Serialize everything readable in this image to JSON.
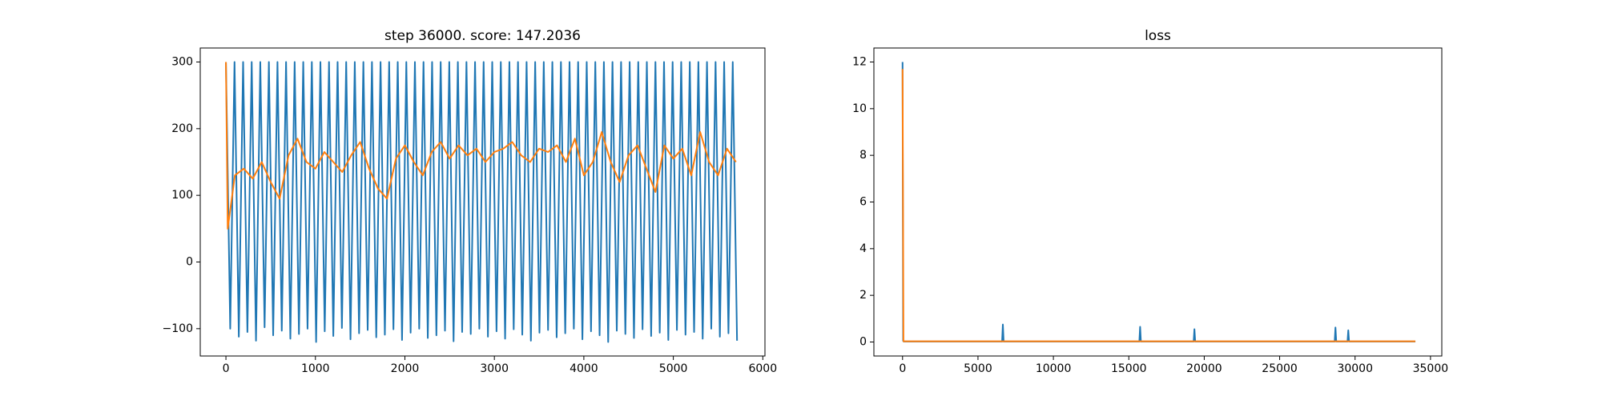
{
  "chart_data": [
    {
      "type": "line",
      "title": "step 36000. score: 147.2036",
      "xlim": [
        -287,
        6024
      ],
      "ylim": [
        -141,
        321
      ],
      "xticks": [
        0,
        1000,
        2000,
        3000,
        4000,
        5000,
        6000
      ],
      "yticks": [
        {
          "value": -100,
          "label": "−100"
        },
        0,
        100,
        200,
        300
      ],
      "series": [
        {
          "color": "#1f77b4",
          "x": [
            0,
            48,
            96,
            144,
            192,
            240,
            288,
            336,
            384,
            432,
            480,
            528,
            576,
            624,
            672,
            720,
            768,
            816,
            864,
            912,
            960,
            1008,
            1056,
            1104,
            1152,
            1200,
            1248,
            1296,
            1344,
            1392,
            1440,
            1488,
            1536,
            1584,
            1632,
            1680,
            1728,
            1776,
            1824,
            1872,
            1920,
            1968,
            2016,
            2064,
            2112,
            2160,
            2208,
            2256,
            2304,
            2352,
            2400,
            2448,
            2496,
            2544,
            2592,
            2640,
            2688,
            2736,
            2784,
            2832,
            2880,
            2928,
            2976,
            3024,
            3072,
            3120,
            3168,
            3216,
            3264,
            3312,
            3360,
            3408,
            3456,
            3504,
            3552,
            3600,
            3648,
            3696,
            3744,
            3792,
            3840,
            3888,
            3936,
            3984,
            4032,
            4080,
            4128,
            4176,
            4224,
            4272,
            4320,
            4368,
            4416,
            4464,
            4512,
            4560,
            4608,
            4656,
            4704,
            4752,
            4800,
            4848,
            4896,
            4944,
            4992,
            5040,
            5088,
            5136,
            5184,
            5232,
            5280,
            5328,
            5376,
            5424,
            5472,
            5520,
            5568,
            5616,
            5664,
            5712
          ],
          "values": [
            300,
            -100,
            300,
            -112,
            300,
            -105,
            300,
            -118,
            300,
            -98,
            300,
            -110,
            300,
            -103,
            300,
            -115,
            300,
            -108,
            300,
            -100,
            300,
            -120,
            300,
            -104,
            300,
            -111,
            300,
            -99,
            300,
            -116,
            300,
            -107,
            300,
            -102,
            300,
            -113,
            300,
            -109,
            300,
            -101,
            300,
            -117,
            300,
            -106,
            300,
            -100,
            300,
            -114,
            300,
            -110,
            300,
            -103,
            300,
            -119,
            300,
            -105,
            300,
            -108,
            300,
            -100,
            300,
            -112,
            300,
            -104,
            300,
            -115,
            300,
            -101,
            300,
            -109,
            300,
            -118,
            300,
            -106,
            300,
            -102,
            300,
            -113,
            300,
            -107,
            300,
            -100,
            300,
            -116,
            300,
            -104,
            300,
            -110,
            300,
            -120,
            300,
            -103,
            300,
            -108,
            300,
            -114,
            300,
            -101,
            300,
            -111,
            300,
            -106,
            300,
            -117,
            300,
            -102,
            300,
            -109,
            300,
            -105,
            300,
            -115,
            300,
            -100,
            300,
            -112,
            300,
            -107,
            300,
            -118
          ]
        },
        {
          "color": "#ff7f0e",
          "x": [
            0,
            20,
            100,
            200,
            300,
            400,
            500,
            600,
            700,
            800,
            900,
            1000,
            1100,
            1200,
            1300,
            1400,
            1500,
            1600,
            1700,
            1800,
            1900,
            2000,
            2100,
            2200,
            2300,
            2400,
            2500,
            2600,
            2700,
            2800,
            2900,
            3000,
            3100,
            3200,
            3300,
            3400,
            3500,
            3600,
            3700,
            3800,
            3900,
            4000,
            4100,
            4200,
            4300,
            4400,
            4500,
            4600,
            4700,
            4800,
            4900,
            5000,
            5100,
            5200,
            5300,
            5400,
            5500,
            5600,
            5700
          ],
          "values": [
            300,
            50,
            130,
            140,
            125,
            150,
            120,
            95,
            160,
            185,
            150,
            140,
            165,
            150,
            135,
            160,
            180,
            140,
            110,
            95,
            155,
            175,
            150,
            130,
            165,
            180,
            155,
            175,
            160,
            170,
            150,
            165,
            170,
            180,
            160,
            150,
            170,
            165,
            175,
            150,
            185,
            130,
            150,
            195,
            150,
            120,
            160,
            175,
            140,
            105,
            175,
            155,
            170,
            130,
            195,
            150,
            130,
            170,
            150
          ]
        }
      ]
    },
    {
      "type": "line",
      "title": "loss",
      "xlim": [
        -1900,
        35750
      ],
      "ylim": [
        -0.6,
        12.6
      ],
      "xticks": [
        0,
        5000,
        10000,
        15000,
        20000,
        25000,
        30000,
        35000
      ],
      "yticks": [
        0,
        2,
        4,
        6,
        8,
        10,
        12
      ],
      "series": [
        {
          "color": "#1f77b4",
          "x": [
            0,
            40,
            80,
            6600,
            6650,
            6700,
            15700,
            15750,
            15800,
            19300,
            19350,
            19400,
            28650,
            28700,
            28750,
            29500,
            29550,
            29600,
            34000
          ],
          "values": [
            12,
            0.05,
            0.02,
            0.02,
            0.75,
            0.02,
            0.02,
            0.65,
            0.02,
            0.02,
            0.55,
            0.02,
            0.02,
            0.62,
            0.02,
            0.02,
            0.5,
            0.02,
            0.02
          ]
        },
        {
          "color": "#ff7f0e",
          "x": [
            0,
            60,
            34000
          ],
          "values": [
            11.7,
            0.03,
            0.03
          ]
        }
      ]
    }
  ]
}
